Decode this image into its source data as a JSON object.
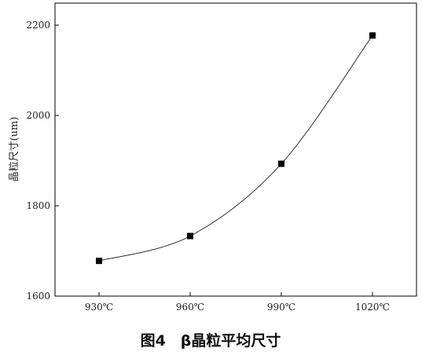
{
  "chart_data": {
    "type": "line",
    "categories": [
      "930℃",
      "960℃",
      "990℃",
      "1020℃"
    ],
    "series": [
      {
        "values": [
          1678,
          1733,
          1893,
          2177
        ]
      }
    ],
    "xlabel": "",
    "ylabel": "晶粒尺寸(um)",
    "ylim": [
      1600,
      2250
    ],
    "yticks": [
      1600,
      1800,
      2000,
      2200
    ],
    "grid": false,
    "legend": "none",
    "marker": "square",
    "line_style": "smooth",
    "colors": {
      "line": "#333333",
      "marker": "#000000",
      "axis": "#000000"
    }
  },
  "caption": "图4　β晶粒平均尺寸"
}
